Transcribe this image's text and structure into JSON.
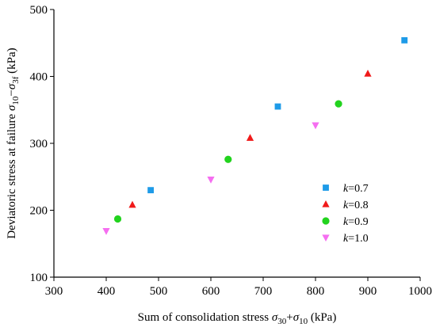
{
  "chart_data": {
    "type": "scatter",
    "title": "",
    "xlabel": {
      "prefix": "Sum of consolidation stress ",
      "var1": "σ",
      "sub1": "30",
      "plus": "+",
      "var2": "σ",
      "sub2": "10",
      "unit": "  (kPa)"
    },
    "ylabel": {
      "prefix": "Deviatoric stress at failure ",
      "var1": "σ",
      "sub1": "10",
      "minus": "−",
      "var2": "σ",
      "sub2": "3f",
      "unit": "  (kPa)"
    },
    "xlim": [
      300,
      1000
    ],
    "ylim": [
      100,
      500
    ],
    "xticks": [
      300,
      400,
      500,
      600,
      700,
      800,
      900,
      1000
    ],
    "yticks": [
      100,
      200,
      300,
      400,
      500
    ],
    "grid": false,
    "legend_position": "lower-right",
    "series": [
      {
        "name": "0.7",
        "marker": "square",
        "color": "#1E9BE8",
        "points": [
          [
            485,
            230
          ],
          [
            728,
            355
          ],
          [
            970,
            454
          ]
        ]
      },
      {
        "name": "0.8",
        "marker": "triangle-up",
        "color": "#F01A1A",
        "points": [
          [
            450,
            208
          ],
          [
            675,
            308
          ],
          [
            900,
            404
          ]
        ]
      },
      {
        "name": "0.9",
        "marker": "circle",
        "color": "#22D31E",
        "points": [
          [
            422,
            187
          ],
          [
            633,
            276
          ],
          [
            844,
            359
          ]
        ]
      },
      {
        "name": "1.0",
        "marker": "triangle-down",
        "color": "#F56EF0",
        "points": [
          [
            400,
            169
          ],
          [
            600,
            246
          ],
          [
            800,
            327
          ]
        ]
      }
    ],
    "legend_prefix": "k",
    "legend_eq": "="
  }
}
